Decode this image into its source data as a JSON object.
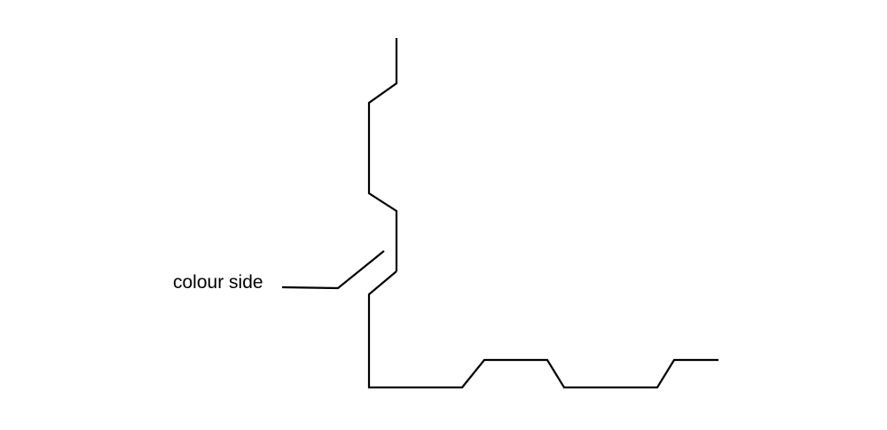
{
  "diagram": {
    "label": "colour side",
    "line_color": "#000000",
    "background_color": "#ffffff"
  }
}
